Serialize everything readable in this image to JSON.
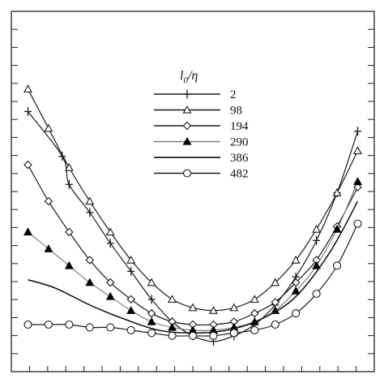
{
  "chart_data": {
    "type": "line",
    "title": "",
    "xlabel": "",
    "ylabel": "",
    "x_tick_labels": [],
    "y_tick_labels": [],
    "grid": false,
    "legend": {
      "placement": "top-center",
      "title": "l0/η",
      "title_base": "l",
      "title_sub": "0",
      "title_tail": "/η"
    },
    "series": [
      {
        "name": "2",
        "marker": "plus",
        "color": "#1a1a1a",
        "x": [
          0.02,
          0.12,
          0.14,
          0.2,
          0.26,
          0.32,
          0.38,
          0.44,
          0.5,
          0.56,
          0.62,
          0.68,
          0.74,
          0.8,
          0.86,
          0.92,
          0.98
        ],
        "y": [
          0.82,
          0.66,
          0.56,
          0.46,
          0.35,
          0.25,
          0.15,
          0.07,
          0.02,
          0.0,
          0.02,
          0.06,
          0.13,
          0.23,
          0.36,
          0.53,
          0.75
        ]
      },
      {
        "name": "98",
        "marker": "triangle-open",
        "color": "#1a1a1a",
        "x": [
          0.02,
          0.08,
          0.14,
          0.2,
          0.26,
          0.32,
          0.38,
          0.44,
          0.5,
          0.56,
          0.62,
          0.68,
          0.74,
          0.8,
          0.86,
          0.92,
          0.98
        ],
        "y": [
          0.9,
          0.76,
          0.62,
          0.5,
          0.39,
          0.29,
          0.21,
          0.15,
          0.12,
          0.11,
          0.12,
          0.15,
          0.21,
          0.29,
          0.4,
          0.53,
          0.68
        ]
      },
      {
        "name": "194",
        "marker": "diamond-open",
        "color": "#1a1a1a",
        "x": [
          0.02,
          0.08,
          0.14,
          0.2,
          0.26,
          0.32,
          0.38,
          0.44,
          0.5,
          0.56,
          0.62,
          0.68,
          0.74,
          0.8,
          0.86,
          0.92,
          0.98
        ],
        "y": [
          0.63,
          0.5,
          0.39,
          0.29,
          0.21,
          0.15,
          0.1,
          0.07,
          0.06,
          0.06,
          0.07,
          0.1,
          0.14,
          0.21,
          0.29,
          0.41,
          0.55
        ]
      },
      {
        "name": "290",
        "marker": "triangle-filled",
        "color": "#7f7f7f",
        "x": [
          0.02,
          0.08,
          0.14,
          0.2,
          0.26,
          0.32,
          0.38,
          0.44,
          0.5,
          0.56,
          0.62,
          0.68,
          0.74,
          0.8,
          0.86,
          0.92,
          0.98
        ],
        "y": [
          0.39,
          0.33,
          0.27,
          0.21,
          0.16,
          0.11,
          0.07,
          0.05,
          0.04,
          0.04,
          0.05,
          0.07,
          0.11,
          0.18,
          0.27,
          0.4,
          0.57
        ]
      },
      {
        "name": "386",
        "marker": "none",
        "color": "#1a1a1a",
        "x": [
          0.02,
          0.1,
          0.2,
          0.3,
          0.4,
          0.5,
          0.6,
          0.7,
          0.8,
          0.9,
          0.98
        ],
        "y": [
          0.22,
          0.19,
          0.13,
          0.08,
          0.04,
          0.03,
          0.04,
          0.08,
          0.16,
          0.32,
          0.5
        ]
      },
      {
        "name": "482",
        "marker": "circle-open",
        "color": "#1a1a1a",
        "x": [
          0.02,
          0.08,
          0.14,
          0.2,
          0.26,
          0.32,
          0.38,
          0.44,
          0.5,
          0.56,
          0.62,
          0.68,
          0.74,
          0.8,
          0.86,
          0.92,
          0.98
        ],
        "y": [
          0.06,
          0.06,
          0.06,
          0.05,
          0.05,
          0.04,
          0.03,
          0.02,
          0.02,
          0.02,
          0.03,
          0.04,
          0.06,
          0.1,
          0.17,
          0.27,
          0.42
        ]
      }
    ],
    "xlim": [
      0,
      1
    ],
    "ylim": [
      -0.05,
      1.05
    ]
  }
}
